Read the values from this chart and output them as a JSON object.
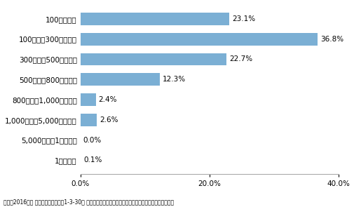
{
  "categories": [
    "100万円未満",
    "100万円～300万円未満",
    "300万円～500万円未満",
    "500万円～800万円未満",
    "800万円～1,000万円未満",
    "1,000万円～5,000万円未満",
    "5,000万円～1億円未満",
    "1億円以上"
  ],
  "values": [
    23.1,
    36.8,
    22.7,
    12.3,
    2.4,
    2.6,
    0.0,
    0.1
  ],
  "labels": [
    "23.1%",
    "36.8%",
    "22.7%",
    "12.3%",
    "2.4%",
    "2.6%",
    "0.0%",
    "0.1%"
  ],
  "bar_color": "#7BAFD4",
  "xlim": [
    0,
    40
  ],
  "xticks": [
    0,
    20,
    40
  ],
  "xticklabels": [
    "0.0%",
    "20.0%",
    "40.0%"
  ],
  "caption": "資料：2016年版 小規模企業白書「第1-3-30図 フリーランスの手取り年収、貯金の金額」をもとに著者改変",
  "background_color": "#ffffff"
}
